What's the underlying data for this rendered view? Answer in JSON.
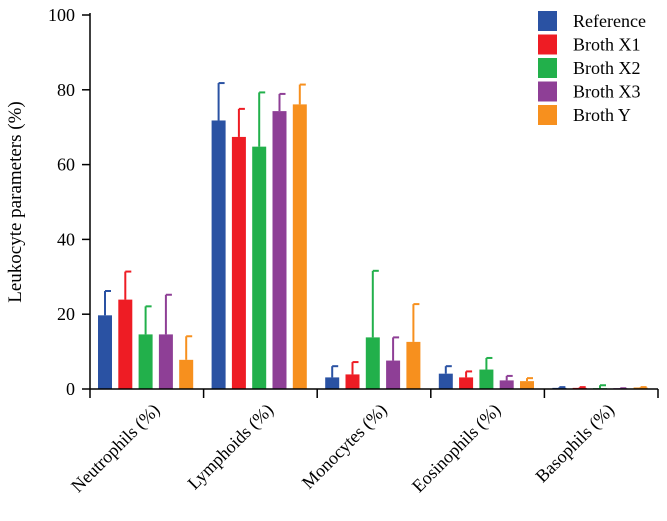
{
  "chart_data": {
    "type": "bar",
    "title": "",
    "xlabel": "",
    "ylabel": "Leukocyte parameters (%)",
    "ylim": [
      0,
      100
    ],
    "yticks": [
      0,
      20,
      40,
      60,
      80,
      100
    ],
    "grid": false,
    "legend_position": "top-right",
    "categories": [
      "Neutrophils (%)",
      "Lymphoids (%)",
      "Monocytes (%)",
      "Eosinophils (%)",
      "Basophils (%)"
    ],
    "series": [
      {
        "name": "Reference",
        "color": "#2a52a3",
        "values": [
          19.7,
          71.8,
          3.1,
          4.1,
          0.3
        ],
        "errors": [
          6.5,
          10.0,
          3.0,
          2.0,
          0.2
        ]
      },
      {
        "name": "Broth X1",
        "color": "#ee1c24",
        "values": [
          23.9,
          67.4,
          3.9,
          3.1,
          0.3
        ],
        "errors": [
          7.5,
          7.5,
          3.3,
          1.6,
          0.2
        ]
      },
      {
        "name": "Broth X2",
        "color": "#22b04b",
        "values": [
          14.6,
          64.8,
          13.8,
          5.2,
          0.2
        ],
        "errors": [
          7.5,
          14.5,
          17.8,
          3.1,
          0.8
        ]
      },
      {
        "name": "Broth X3",
        "color": "#8e3f96",
        "values": [
          14.6,
          74.3,
          7.6,
          2.3,
          0.1
        ],
        "errors": [
          10.6,
          4.6,
          6.2,
          1.2,
          0.1
        ]
      },
      {
        "name": "Broth Y",
        "color": "#f7901e",
        "values": [
          7.8,
          76.1,
          12.6,
          2.1,
          0.4
        ],
        "errors": [
          6.3,
          5.3,
          10.1,
          0.8,
          0.1
        ]
      }
    ]
  }
}
